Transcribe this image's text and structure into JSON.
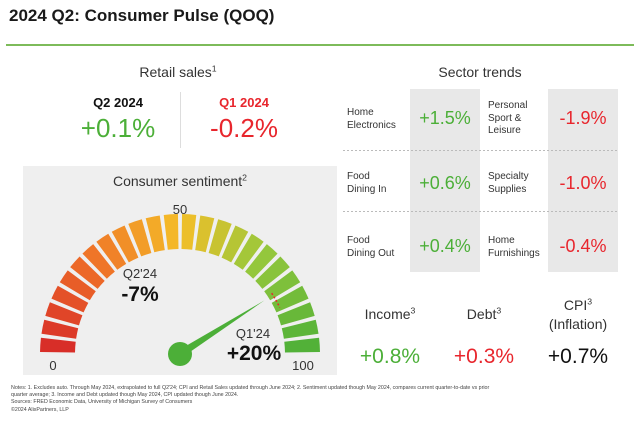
{
  "title": "2024 Q2: Consumer Pulse (QOQ)",
  "colors": {
    "green": "#4caf38",
    "red": "#e8262d",
    "rule": "#7dbb5a"
  },
  "retail_sales": {
    "label": "Retail sales",
    "sup": "1",
    "current": {
      "period": "Q2 2024",
      "value": "+0.1%"
    },
    "previous": {
      "period": "Q1 2024",
      "value": "-0.2%"
    }
  },
  "sentiment": {
    "label": "Consumer sentiment",
    "sup": "2",
    "scale_min": "0",
    "scale_mid": "50",
    "scale_max": "100",
    "needle_value": 82,
    "q2_label": "Q2'24",
    "q2_value": "-7%",
    "q1_label": "Q1'24",
    "q1_value": "+20%"
  },
  "sector_trends": {
    "label": "Sector trends",
    "rows": [
      {
        "left_label": "Home\nElectronics",
        "left_value": "+1.5%",
        "right_label": "Personal\nSport &\nLeisure",
        "right_value": "-1.9%"
      },
      {
        "left_label": "Food\nDining In",
        "left_value": "+0.6%",
        "right_label": "Specialty\nSupplies",
        "right_value": "-1.0%"
      },
      {
        "left_label": "Food\nDining Out",
        "left_value": "+0.4%",
        "right_label": "Home\nFurnishings",
        "right_value": "-0.4%"
      }
    ]
  },
  "bottom_metrics": {
    "income": {
      "label": "Income",
      "sup": "3",
      "value": "+0.8%"
    },
    "debt": {
      "label": "Debt",
      "sup": "3",
      "value": "+0.3%"
    },
    "cpi": {
      "label": "CPI",
      "sup": "3",
      "sublabel": "(Inflation)",
      "value": "+0.7%"
    }
  },
  "notes": {
    "line1": "Notes: 1. Excludes auto. Through May 2024, extrapolated to full Q2'24; CPI and Retail Sales updated through June 2024; 2. Sentiment updated though May 2024, compares current quarter-to-date vs prior",
    "line2": "quarter average; 3. Income and Debt updated though May 2024, CPI updated though June 2024.",
    "sources": "Sources: FRED Economic Data, University of Michigan Survey of Consumers",
    "copyright": "©2024 AlixPartners, LLP"
  }
}
